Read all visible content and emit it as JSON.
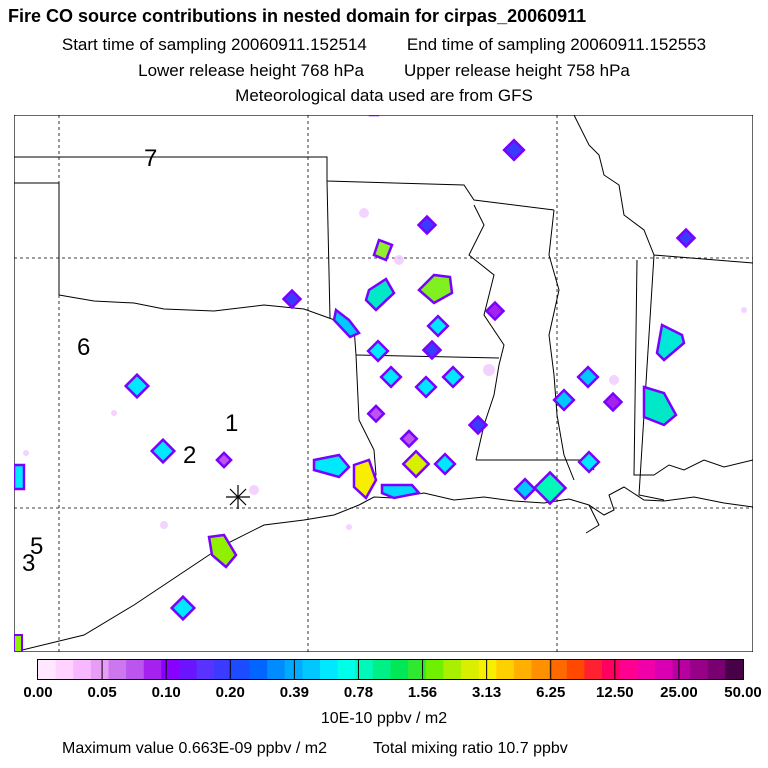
{
  "header": {
    "title": "Fire CO source contributions in nested domain for cirpas_20060911",
    "start_label": "Start time of sampling 20060911.152514",
    "end_label": "End time of sampling 20060911.152553",
    "lower_label": "Lower release height  768 hPa",
    "upper_label": "Upper release height  758 hPa",
    "met_label": "Meteorological data used are from GFS"
  },
  "map": {
    "region_numbers": [
      "7",
      "6",
      "1",
      "2",
      "5",
      "3"
    ],
    "receptor_marker": "asterisk"
  },
  "colorbar": {
    "tick_labels": [
      "0.00",
      "0.05",
      "0.10",
      "0.20",
      "0.39",
      "0.78",
      "1.56",
      "3.13",
      "6.25",
      "12.50",
      "25.00",
      "50.00"
    ],
    "colors": [
      "#ffe8ff",
      "#ffd2ff",
      "#f7b8ff",
      "#e89cf5",
      "#cc77ee",
      "#bb55ee",
      "#a522ee",
      "#8800ff",
      "#6a14ff",
      "#5a32ff",
      "#3b3bff",
      "#1b4cff",
      "#0066ff",
      "#008cff",
      "#00aaff",
      "#00c8ff",
      "#00e8ff",
      "#00ffe8",
      "#00f8b8",
      "#00f088",
      "#00e858",
      "#30e830",
      "#70f000",
      "#a8f000",
      "#d8f000",
      "#f8ee00",
      "#ffd000",
      "#ffb000",
      "#ff9000",
      "#ff6a00",
      "#ff4800",
      "#ff2030",
      "#ff0060",
      "#ff0090",
      "#f000a8",
      "#d800b0",
      "#b800a0",
      "#980088",
      "#780070",
      "#480048"
    ],
    "units": "10E-10 ppbv / m2"
  },
  "footer": {
    "max_label": "Maximum value  0.663E-09 ppbv / m2",
    "total_label": "Total mixing ratio       10.7 ppbv"
  }
}
